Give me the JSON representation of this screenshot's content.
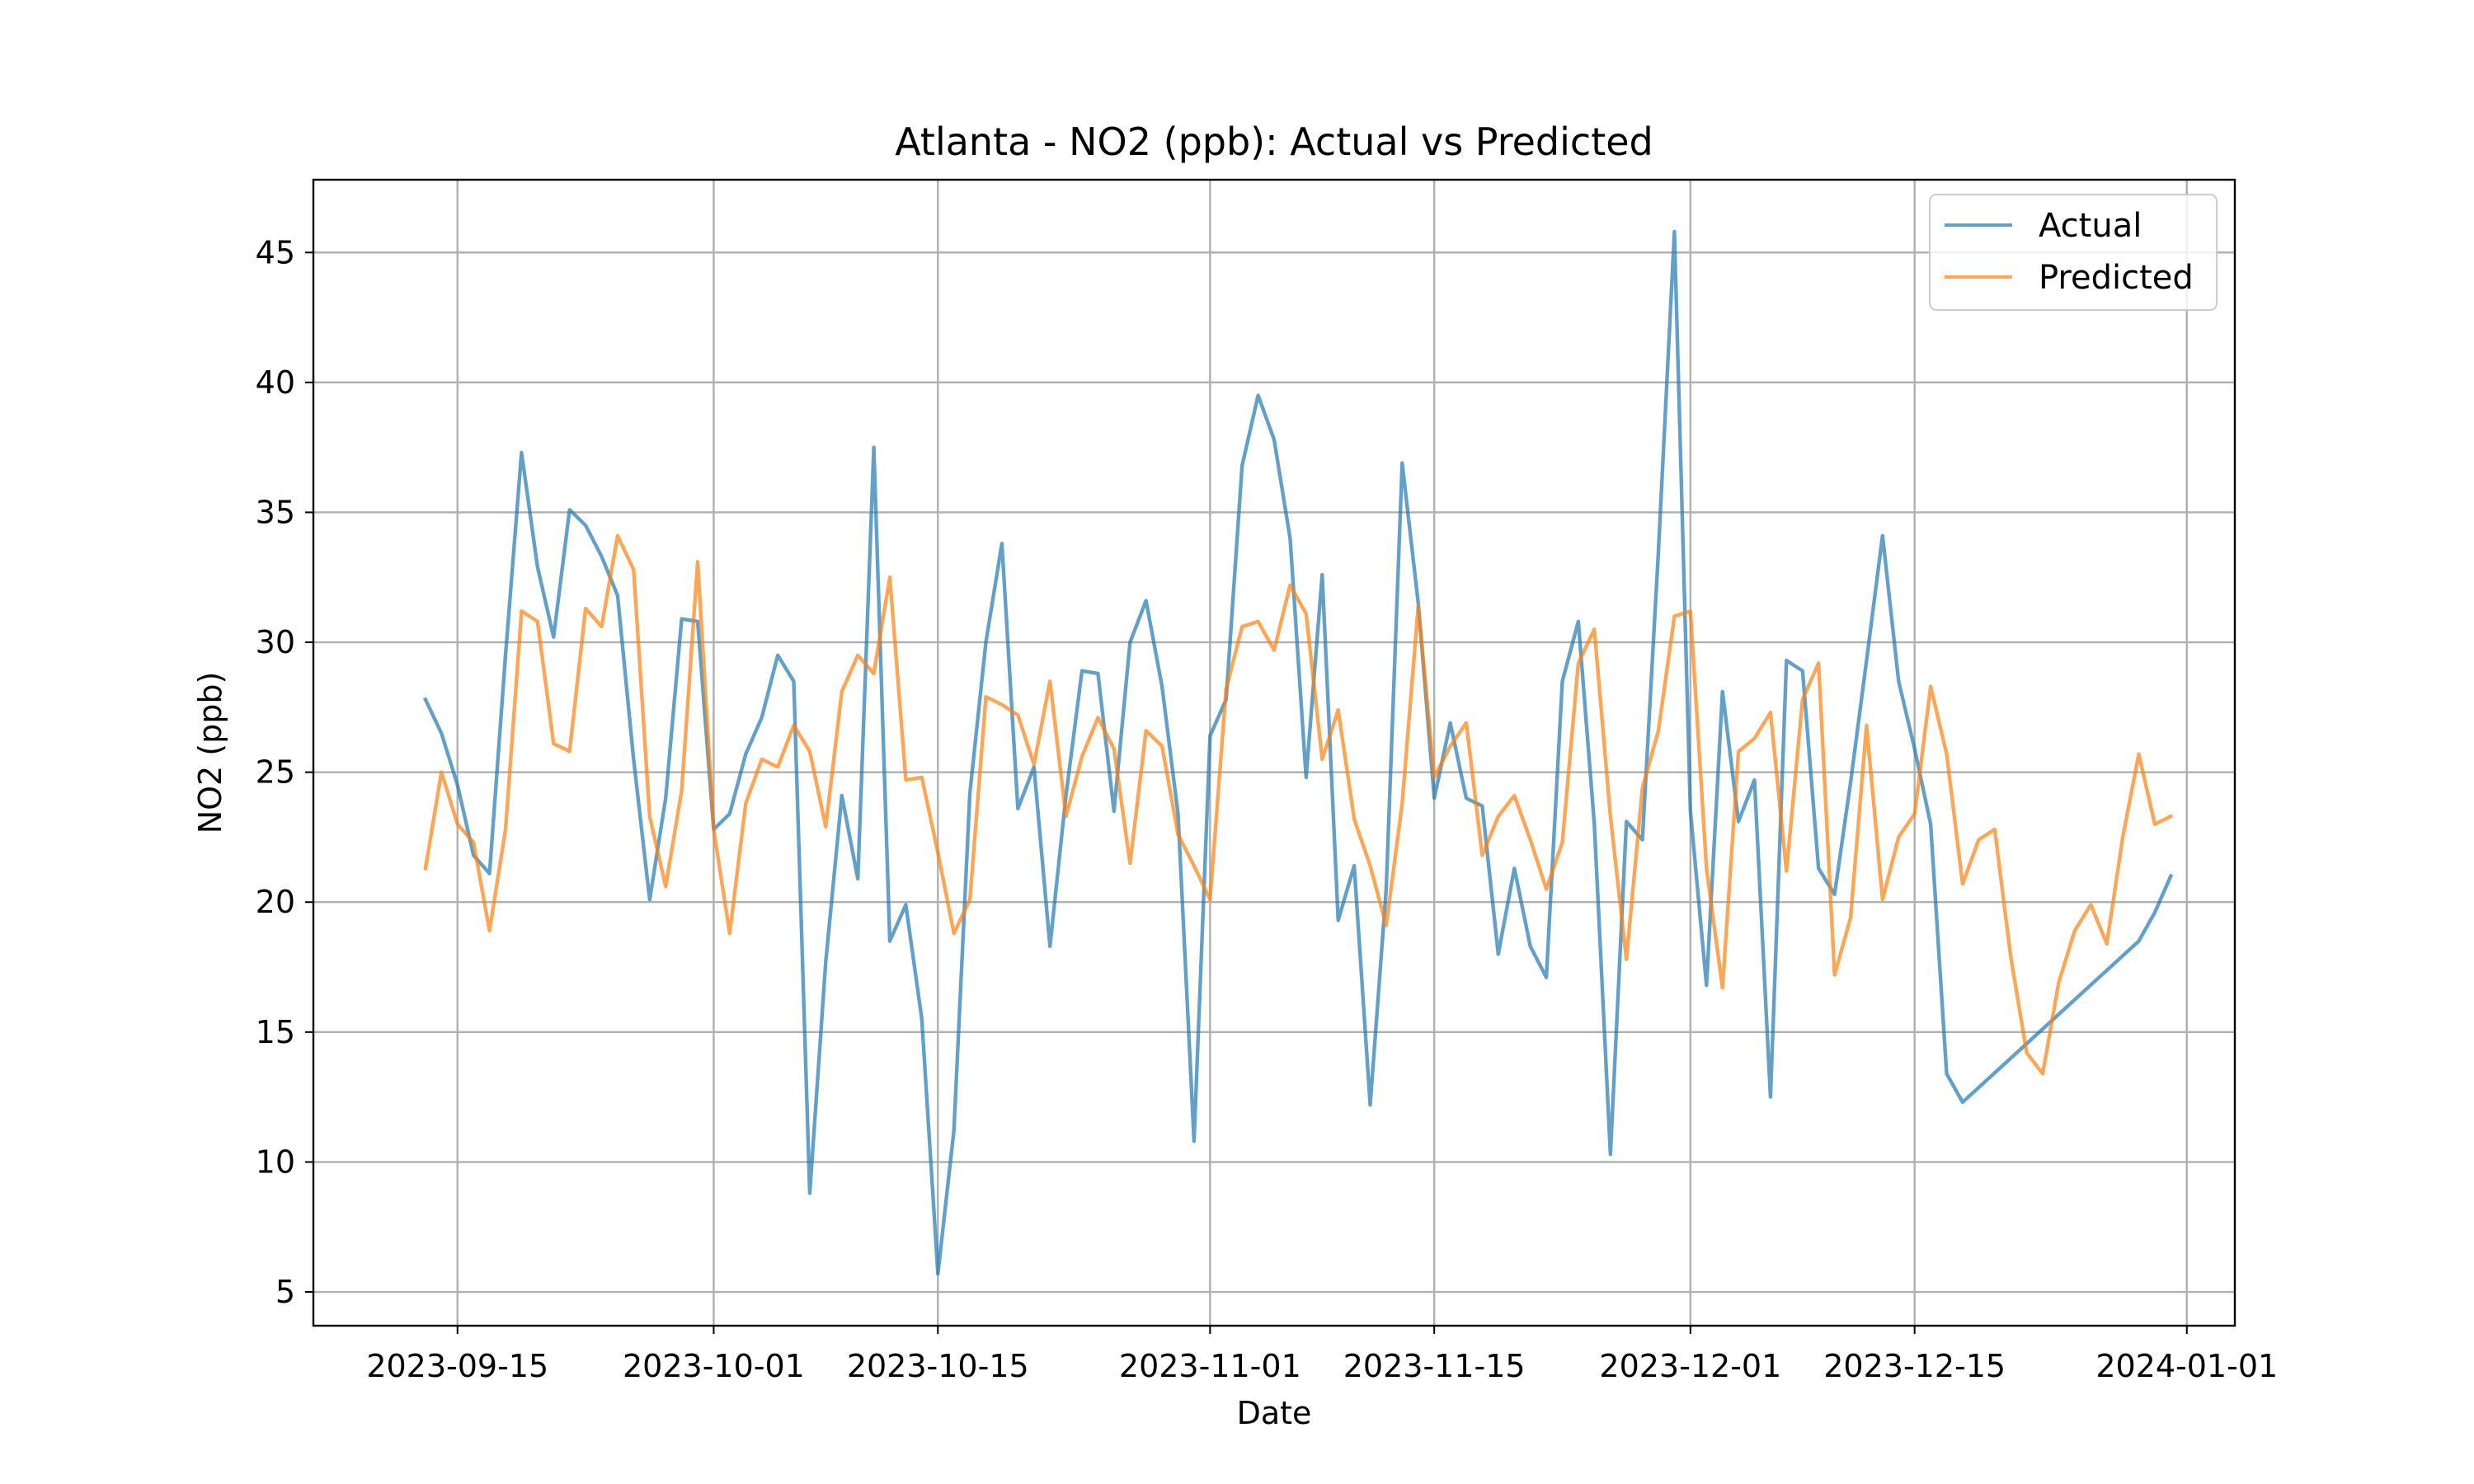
{
  "chart_data": {
    "type": "line",
    "title": "Atlanta - NO2 (ppb): Actual vs Predicted",
    "xlabel": "Date",
    "ylabel": "NO2 (ppb)",
    "grid": true,
    "legend_position": "top-right",
    "xlim": [
      "2023-09-06",
      "2024-01-04"
    ],
    "ylim": [
      3.7,
      47.8
    ],
    "x_ticks": [
      "2023-09-15",
      "2023-10-01",
      "2023-10-15",
      "2023-11-01",
      "2023-11-15",
      "2023-12-01",
      "2023-12-15",
      "2024-01-01"
    ],
    "y_ticks": [
      5,
      10,
      15,
      20,
      25,
      30,
      35,
      40,
      45
    ],
    "x": [
      "2023-09-13",
      "2023-09-14",
      "2023-09-15",
      "2023-09-16",
      "2023-09-17",
      "2023-09-18",
      "2023-09-19",
      "2023-09-20",
      "2023-09-21",
      "2023-09-22",
      "2023-09-23",
      "2023-09-24",
      "2023-09-25",
      "2023-09-26",
      "2023-09-27",
      "2023-09-28",
      "2023-09-29",
      "2023-09-30",
      "2023-10-01",
      "2023-10-02",
      "2023-10-03",
      "2023-10-04",
      "2023-10-05",
      "2023-10-06",
      "2023-10-07",
      "2023-10-08",
      "2023-10-09",
      "2023-10-10",
      "2023-10-11",
      "2023-10-12",
      "2023-10-13",
      "2023-10-14",
      "2023-10-15",
      "2023-10-16",
      "2023-10-17",
      "2023-10-18",
      "2023-10-19",
      "2023-10-20",
      "2023-10-21",
      "2023-10-22",
      "2023-10-23",
      "2023-10-24",
      "2023-10-25",
      "2023-10-26",
      "2023-10-27",
      "2023-10-28",
      "2023-10-29",
      "2023-10-30",
      "2023-10-31",
      "2023-11-01",
      "2023-11-02",
      "2023-11-03",
      "2023-11-04",
      "2023-11-05",
      "2023-11-06",
      "2023-11-07",
      "2023-11-08",
      "2023-11-09",
      "2023-11-10",
      "2023-11-11",
      "2023-11-12",
      "2023-11-13",
      "2023-11-14",
      "2023-11-15",
      "2023-11-16",
      "2023-11-17",
      "2023-11-18",
      "2023-11-19",
      "2023-11-20",
      "2023-11-21",
      "2023-11-22",
      "2023-11-23",
      "2023-11-24",
      "2023-11-25",
      "2023-11-26",
      "2023-11-27",
      "2023-11-28",
      "2023-11-29",
      "2023-11-30",
      "2023-12-01",
      "2023-12-02",
      "2023-12-03",
      "2023-12-04",
      "2023-12-05",
      "2023-12-06",
      "2023-12-07",
      "2023-12-08",
      "2023-12-09",
      "2023-12-10",
      "2023-12-11",
      "2023-12-12",
      "2023-12-13",
      "2023-12-14",
      "2023-12-15",
      "2023-12-16",
      "2023-12-17",
      "2023-12-18",
      "2023-12-19",
      "2023-12-20",
      "2023-12-21",
      "2023-12-22",
      "2023-12-23",
      "2023-12-24",
      "2023-12-25",
      "2023-12-26",
      "2023-12-27",
      "2023-12-28",
      "2023-12-29",
      "2023-12-30",
      "2023-12-31"
    ],
    "series": [
      {
        "name": "Actual",
        "color": "#1f77b4",
        "values": [
          27.8,
          26.5,
          24.5,
          21.8,
          21.1,
          29.5,
          37.3,
          32.9,
          30.2,
          35.1,
          34.5,
          33.3,
          31.8,
          25.5,
          20.1,
          24.0,
          30.9,
          30.8,
          22.8,
          23.4,
          25.7,
          27.1,
          29.5,
          28.5,
          8.8,
          17.7,
          24.1,
          20.9,
          37.5,
          18.5,
          19.9,
          15.5,
          5.7,
          11.2,
          24.2,
          30.0,
          33.8,
          23.6,
          25.2,
          18.3,
          24.1,
          28.9,
          28.8,
          23.5,
          30.0,
          31.6,
          28.3,
          23.4,
          10.8,
          26.4,
          27.8,
          36.8,
          39.5,
          37.8,
          34.0,
          24.8,
          32.6,
          19.3,
          21.4,
          12.2,
          20.5,
          36.9,
          31.5,
          24.0,
          26.9,
          24.0,
          23.7,
          18.0,
          21.3,
          18.3,
          17.1,
          28.5,
          30.8,
          23.0,
          10.3,
          23.1,
          22.4,
          33.5,
          45.8,
          23.5,
          16.8,
          28.1,
          23.1,
          24.7,
          12.5,
          29.3,
          28.9,
          21.3,
          20.3,
          24.6,
          29.3,
          34.1,
          28.5,
          25.9,
          23.0,
          13.4,
          12.3,
          null,
          null,
          null,
          null,
          null,
          null,
          null,
          null,
          null,
          null,
          18.5,
          19.6,
          21.0
        ]
      },
      {
        "name": "Predicted",
        "color": "#ff7f0e",
        "values": [
          21.3,
          25.0,
          23.0,
          22.3,
          18.9,
          22.8,
          31.2,
          30.8,
          26.1,
          25.8,
          31.3,
          30.6,
          34.1,
          32.8,
          23.3,
          20.6,
          24.3,
          33.1,
          22.8,
          18.8,
          23.8,
          25.5,
          25.2,
          26.8,
          25.8,
          22.9,
          28.1,
          29.5,
          28.8,
          32.5,
          24.7,
          24.8,
          21.9,
          18.8,
          20.1,
          27.9,
          27.6,
          27.2,
          25.3,
          28.5,
          23.3,
          25.6,
          27.1,
          25.9,
          21.5,
          26.6,
          26.0,
          22.6,
          21.4,
          20.1,
          28.2,
          30.6,
          30.8,
          29.7,
          32.2,
          31.1,
          25.5,
          27.4,
          23.2,
          21.4,
          19.1,
          23.8,
          31.4,
          24.8,
          26.0,
          26.9,
          21.8,
          23.3,
          24.1,
          22.4,
          20.5,
          22.3,
          29.2,
          30.5,
          23.3,
          17.8,
          24.4,
          26.6,
          31.0,
          31.2,
          21.3,
          16.7,
          25.8,
          26.3,
          27.3,
          21.2,
          27.8,
          29.2,
          17.2,
          19.4,
          26.8,
          20.1,
          22.5,
          23.4,
          28.3,
          25.7,
          20.7,
          22.4,
          22.8,
          17.9,
          14.2,
          13.4,
          16.9,
          18.9,
          19.9,
          18.4,
          22.5,
          25.7,
          23.0,
          23.3
        ]
      }
    ]
  }
}
